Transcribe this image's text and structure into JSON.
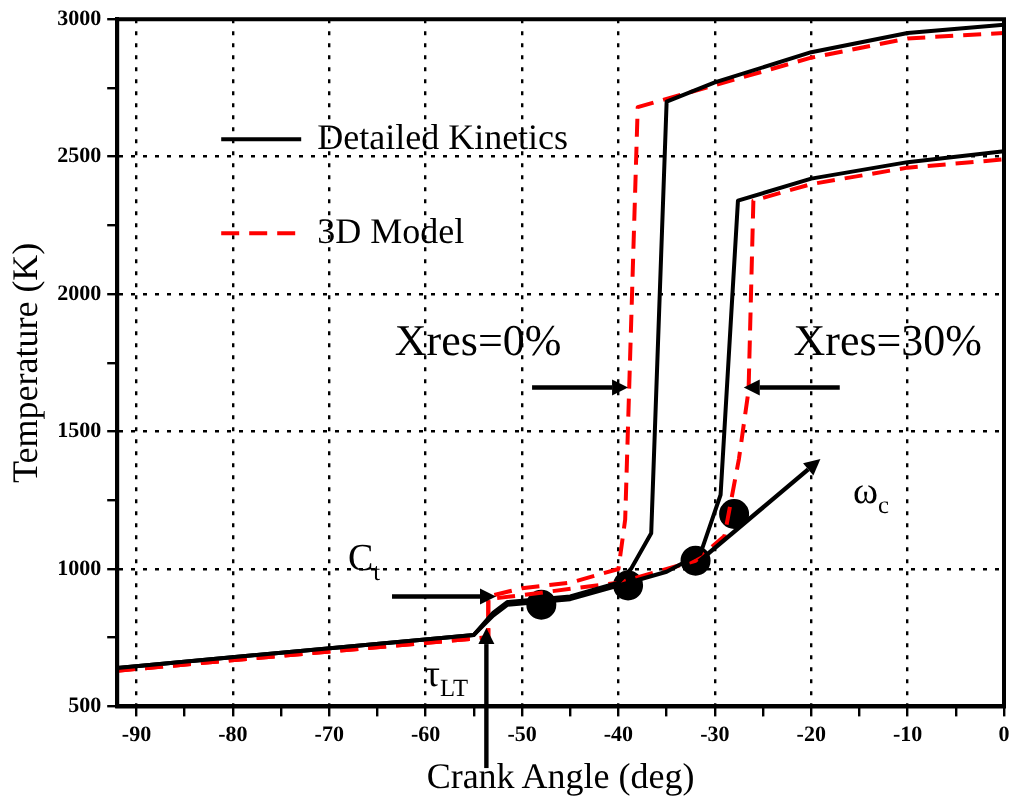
{
  "chart_data": {
    "type": "line",
    "xlabel": "Crank Angle (deg)",
    "ylabel": "Temperature (K)",
    "xlim": [
      -92,
      0
    ],
    "ylim": [
      500,
      3000
    ],
    "xticks": [
      -90,
      {
        "value": -85,
        "label": null
      },
      -80,
      {
        "value": -75,
        "label": null
      },
      -70,
      {
        "value": -65,
        "label": null
      },
      -60,
      {
        "value": -55,
        "label": null
      },
      -50,
      {
        "value": -45,
        "label": null
      },
      -40,
      {
        "value": -35,
        "label": null
      },
      -30,
      {
        "value": -25,
        "label": null
      },
      -20,
      {
        "value": -15,
        "label": null
      },
      -10,
      {
        "value": -5,
        "label": null
      },
      0
    ],
    "yticks": [
      500,
      {
        "value": 750,
        "label": null
      },
      1000,
      {
        "value": 1250,
        "label": null
      },
      1500,
      {
        "value": 1750,
        "label": null
      },
      2000,
      {
        "value": 2250,
        "label": null
      },
      2500,
      {
        "value": 2750,
        "label": null
      },
      3000
    ],
    "grid": true,
    "legend": "top left",
    "series": [
      {
        "name": "Detailed Kinetics",
        "color": "#000000",
        "line_style": "solid",
        "marker": "none",
        "x": [
          -92,
          -55,
          -53,
          -51.5,
          -45,
          -40,
          -38.7,
          -36.6,
          -35,
          -30,
          -20,
          -10,
          0
        ],
        "values": [
          640,
          760,
          840,
          880,
          900,
          950,
          1000,
          1130,
          2700,
          2770,
          2880,
          2950,
          2980
        ]
      },
      {
        "name": "3D Model",
        "color": "#ff0000",
        "line_style": "dashed",
        "marker": "none",
        "x": [
          -92,
          -54,
          -53.5,
          -53.5,
          -50,
          -45,
          -40,
          -39.3,
          -38,
          -37,
          -30,
          -20,
          -10,
          0
        ],
        "values": [
          630,
          750,
          750,
          900,
          930,
          950,
          1000,
          1180,
          2680,
          2690,
          2760,
          2860,
          2930,
          2950
        ]
      },
      {
        "color": "#000000",
        "line_style": "solid",
        "marker": "none",
        "x": [
          -92,
          -55,
          -53,
          -51.5,
          -45,
          -40,
          -35,
          -31.5,
          -29.4,
          -27.6,
          -20,
          -10,
          0
        ],
        "values": [
          640,
          760,
          830,
          870,
          890,
          940,
          990,
          1055,
          1270,
          2340,
          2420,
          2480,
          2520
        ]
      },
      {
        "color": "#ff0000",
        "line_style": "dashed",
        "marker": "none",
        "x": [
          -92,
          -54,
          -53.5,
          -53.5,
          -50,
          -40,
          -32,
          -29,
          -27.5,
          -26.5,
          -26,
          -20,
          -10,
          0
        ],
        "values": [
          630,
          750,
          750,
          890,
          905,
          950,
          1030,
          1120,
          1400,
          1650,
          2340,
          2400,
          2460,
          2490
        ]
      },
      {
        "type": "scatter",
        "color": "#000000",
        "marker": "circle",
        "x": [
          -48,
          -39,
          -32,
          -28
        ],
        "values": [
          870,
          940,
          1030,
          1200
        ]
      }
    ],
    "annotations": [
      {
        "text": "Xres=0%",
        "x": -39,
        "y": 1660
      },
      {
        "text": "Xres=30%",
        "x": -27,
        "y": 1660
      },
      {
        "text": "C$_{t}$",
        "x": -52.7,
        "y": 900
      },
      {
        "text": "τ$_{LT}$",
        "x": -53.7,
        "y": 785
      },
      "ω$_{c}$"
    ]
  }
}
